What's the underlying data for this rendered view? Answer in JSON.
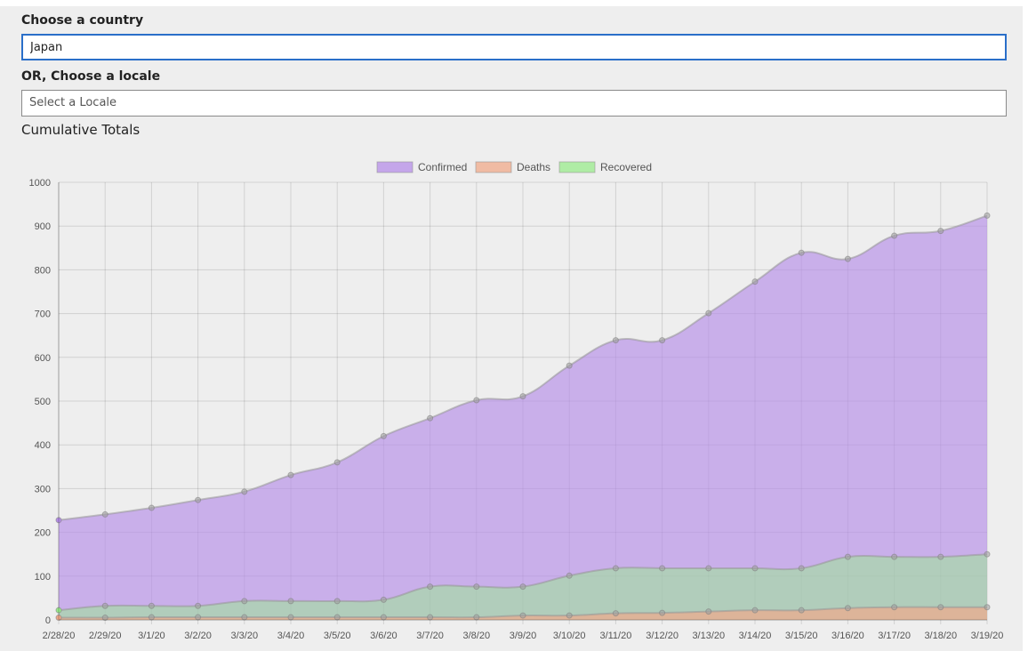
{
  "form": {
    "country_label": "Choose a country",
    "country_value": "Japan",
    "locale_label": "OR, Choose a locale",
    "locale_placeholder": "Select a Locale"
  },
  "section_title": "Cumulative Totals",
  "chart_data": {
    "type": "area",
    "title": "",
    "xlabel": "",
    "ylabel": "",
    "ylim": [
      0,
      1000
    ],
    "yticks": [
      0,
      100,
      200,
      300,
      400,
      500,
      600,
      700,
      800,
      900,
      1000
    ],
    "grid": true,
    "legend_position": "top-center",
    "categories": [
      "2/28/20",
      "2/29/20",
      "3/1/20",
      "3/2/20",
      "3/3/20",
      "3/4/20",
      "3/5/20",
      "3/6/20",
      "3/7/20",
      "3/8/20",
      "3/9/20",
      "3/10/20",
      "3/11/20",
      "3/12/20",
      "3/13/20",
      "3/14/20",
      "3/15/20",
      "3/16/20",
      "3/17/20",
      "3/18/20",
      "3/19/20"
    ],
    "series": [
      {
        "name": "Confirmed",
        "color": "#b68ee8",
        "values": [
          228,
          241,
          256,
          274,
          293,
          331,
          360,
          420,
          461,
          502,
          511,
          581,
          639,
          639,
          701,
          773,
          839,
          825,
          878,
          889,
          924
        ]
      },
      {
        "name": "Deaths",
        "color": "#f0a98a",
        "values": [
          5,
          5,
          6,
          6,
          6,
          6,
          6,
          6,
          6,
          6,
          10,
          10,
          15,
          16,
          19,
          22,
          22,
          27,
          29,
          29,
          29
        ]
      },
      {
        "name": "Recovered",
        "color": "#9aeb8c",
        "values": [
          22,
          32,
          32,
          32,
          43,
          43,
          43,
          46,
          76,
          76,
          76,
          101,
          118,
          118,
          118,
          118,
          118,
          144,
          144,
          144,
          150
        ]
      }
    ]
  }
}
